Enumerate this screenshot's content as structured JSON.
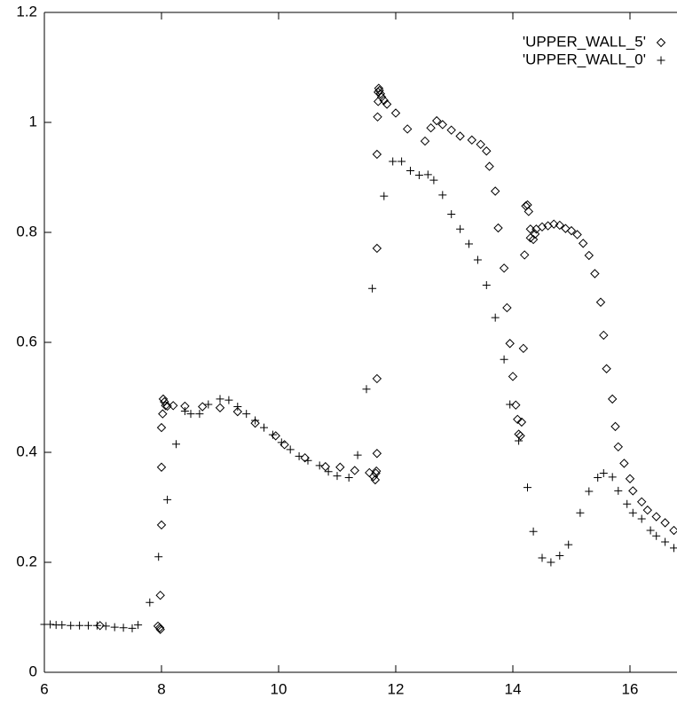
{
  "chart_data": {
    "type": "scatter",
    "xlim": [
      6,
      16.8
    ],
    "ylim": [
      0,
      1.2
    ],
    "xticks": [
      6,
      8,
      10,
      12,
      14,
      16
    ],
    "yticks": [
      0,
      0.2,
      0.4,
      0.6,
      0.8,
      1,
      1.2
    ],
    "series": [
      {
        "name": "'UPPER_WALL_5'",
        "marker": "diamond",
        "color": "#000000",
        "x": [
          6.95,
          7.94,
          7.97,
          7.98,
          7.98,
          8.0,
          8.0,
          8.0,
          8.02,
          8.03,
          8.05,
          8.07,
          8.1,
          8.2,
          8.4,
          8.7,
          9.0,
          9.3,
          9.6,
          9.95,
          10.1,
          10.45,
          10.8,
          11.05,
          11.3,
          11.55,
          11.62,
          11.65,
          11.66,
          11.67,
          11.68,
          11.68,
          11.68,
          11.68,
          11.69,
          11.7,
          11.7,
          11.71,
          11.72,
          11.74,
          11.76,
          11.8,
          11.85,
          12.0,
          12.2,
          12.5,
          12.6,
          12.7,
          12.8,
          12.95,
          13.1,
          13.3,
          13.45,
          13.55,
          13.6,
          13.7,
          13.75,
          13.85,
          13.9,
          13.95,
          14.0,
          14.05,
          14.08,
          14.1,
          14.13,
          14.15,
          14.18,
          14.2,
          14.22,
          14.25,
          14.27,
          14.3,
          14.3,
          14.35,
          14.38,
          14.4,
          14.5,
          14.6,
          14.7,
          14.8,
          14.9,
          15.0,
          15.1,
          15.2,
          15.3,
          15.4,
          15.5,
          15.55,
          15.6,
          15.7,
          15.75,
          15.8,
          15.9,
          16.0,
          16.05,
          16.2,
          16.3,
          16.45,
          16.6,
          16.75
        ],
        "values": [
          0.085,
          0.084,
          0.081,
          0.078,
          0.14,
          0.268,
          0.373,
          0.445,
          0.47,
          0.497,
          0.492,
          0.485,
          0.484,
          0.485,
          0.484,
          0.483,
          0.481,
          0.474,
          0.453,
          0.43,
          0.414,
          0.39,
          0.374,
          0.373,
          0.367,
          0.363,
          0.356,
          0.35,
          0.362,
          0.366,
          0.398,
          0.534,
          0.771,
          0.942,
          1.01,
          1.038,
          1.055,
          1.062,
          1.058,
          1.052,
          1.046,
          1.04,
          1.033,
          1.017,
          0.988,
          0.966,
          0.99,
          1.003,
          0.996,
          0.986,
          0.975,
          0.968,
          0.96,
          0.948,
          0.92,
          0.875,
          0.808,
          0.735,
          0.663,
          0.598,
          0.538,
          0.486,
          0.46,
          0.433,
          0.43,
          0.455,
          0.589,
          0.759,
          0.848,
          0.85,
          0.838,
          0.806,
          0.79,
          0.787,
          0.797,
          0.806,
          0.81,
          0.812,
          0.815,
          0.813,
          0.807,
          0.803,
          0.796,
          0.78,
          0.758,
          0.725,
          0.673,
          0.613,
          0.552,
          0.497,
          0.447,
          0.41,
          0.38,
          0.352,
          0.33,
          0.31,
          0.295,
          0.283,
          0.272,
          0.258
        ]
      },
      {
        "name": "'UPPER_WALL_0'",
        "marker": "plus",
        "color": "#000000",
        "x": [
          6.0,
          6.1,
          6.2,
          6.3,
          6.45,
          6.6,
          6.75,
          6.9,
          7.05,
          7.2,
          7.35,
          7.5,
          7.6,
          7.8,
          7.95,
          8.1,
          8.25,
          8.4,
          8.5,
          8.65,
          8.8,
          9.0,
          9.15,
          9.3,
          9.45,
          9.6,
          9.75,
          9.9,
          10.05,
          10.2,
          10.35,
          10.5,
          10.7,
          10.85,
          11.0,
          11.2,
          11.35,
          11.5,
          11.6,
          11.8,
          11.95,
          12.1,
          12.25,
          12.4,
          12.55,
          12.65,
          12.8,
          12.95,
          13.1,
          13.25,
          13.4,
          13.55,
          13.7,
          13.85,
          13.95,
          14.1,
          14.25,
          14.35,
          14.5,
          14.65,
          14.8,
          14.95,
          15.15,
          15.3,
          15.45,
          15.55,
          15.7,
          15.8,
          15.95,
          16.05,
          16.2,
          16.35,
          16.45,
          16.6,
          16.75
        ],
        "values": [
          0.087,
          0.087,
          0.086,
          0.086,
          0.085,
          0.085,
          0.085,
          0.085,
          0.084,
          0.082,
          0.081,
          0.08,
          0.086,
          0.127,
          0.21,
          0.314,
          0.415,
          0.475,
          0.47,
          0.47,
          0.487,
          0.497,
          0.495,
          0.483,
          0.47,
          0.458,
          0.445,
          0.432,
          0.418,
          0.405,
          0.393,
          0.385,
          0.376,
          0.365,
          0.357,
          0.354,
          0.395,
          0.515,
          0.698,
          0.866,
          0.929,
          0.929,
          0.912,
          0.904,
          0.905,
          0.895,
          0.868,
          0.833,
          0.806,
          0.779,
          0.75,
          0.704,
          0.645,
          0.569,
          0.487,
          0.421,
          0.336,
          0.256,
          0.208,
          0.2,
          0.212,
          0.232,
          0.29,
          0.329,
          0.354,
          0.362,
          0.355,
          0.33,
          0.306,
          0.29,
          0.279,
          0.258,
          0.248,
          0.237,
          0.226
        ]
      }
    ]
  }
}
